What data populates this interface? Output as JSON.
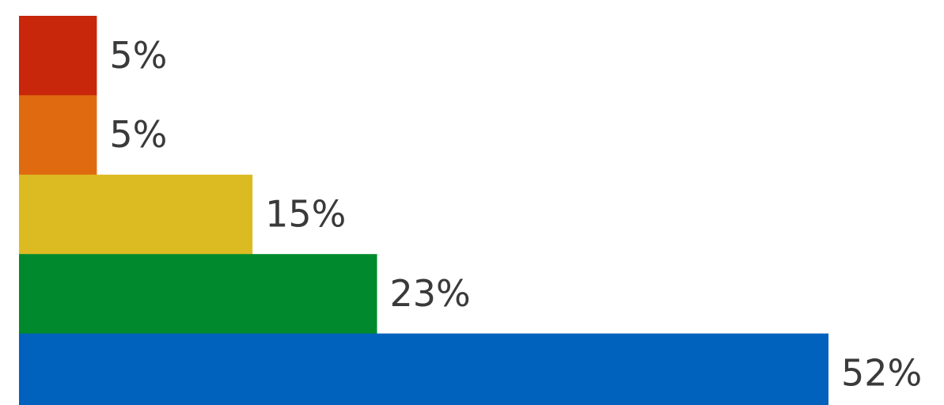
{
  "chart_data": {
    "type": "bar",
    "orientation": "horizontal",
    "values": [
      5,
      5,
      15,
      23,
      52
    ],
    "labels": [
      "5%",
      "5%",
      "15%",
      "23%",
      "52%"
    ],
    "colors": [
      "#c8270b",
      "#e06a10",
      "#dcbb22",
      "#008a2d",
      "#0062bd"
    ],
    "title": "",
    "xlabel": "",
    "ylabel": "",
    "grid": false,
    "legend": "none"
  }
}
